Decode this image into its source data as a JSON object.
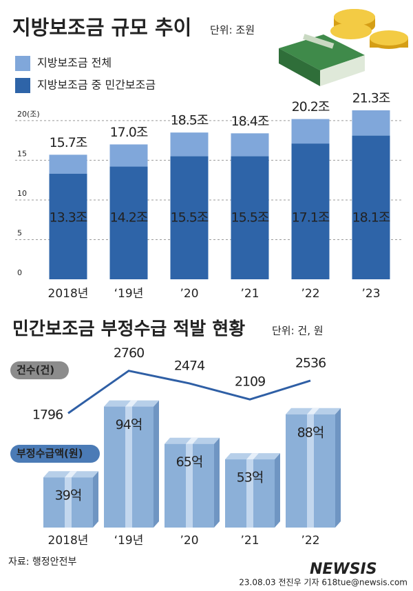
{
  "chart_data": [
    {
      "type": "bar",
      "bar_mode": "overlay",
      "title": "지방보조금 규모 추이",
      "unit": "단위: 조원",
      "categories": [
        "2018년",
        "‘19년",
        "’20",
        "’21",
        "’22",
        "’23"
      ],
      "series": [
        {
          "name": "지방보조금 전체",
          "color": "#80a7da",
          "values": [
            15.7,
            17.0,
            18.5,
            18.4,
            20.2,
            21.3
          ],
          "value_labels": [
            "15.7조",
            "17.0조",
            "18.5조",
            "18.4조",
            "20.2조",
            "21.3조"
          ]
        },
        {
          "name": "지방보조금 중 민간보조금",
          "color": "#2e64a8",
          "values": [
            13.3,
            14.2,
            15.5,
            15.5,
            17.1,
            18.1
          ],
          "value_labels": [
            "13.3조",
            "14.2조",
            "15.5조",
            "15.5조",
            "17.1조",
            "18.1조"
          ]
        }
      ],
      "ylim": [
        0,
        22.6
      ],
      "yticks": [
        0,
        5,
        10,
        15,
        {
          "value": 20,
          "label": "20(조)"
        }
      ],
      "grid": true
    },
    {
      "type": "combo",
      "title": "민간보조금 부정수급 적발 현황",
      "unit": "단위: 건, 원",
      "categories": [
        "2018년",
        "‘19년",
        "’20",
        "’21",
        "’22"
      ],
      "series": [
        {
          "name": "건수(건)",
          "type": "line",
          "axis": "y2",
          "color": "#2f5fa5",
          "values": [
            1796,
            2760,
            2474,
            2109,
            2536
          ]
        },
        {
          "name": "부정수급액(원)",
          "type": "bar",
          "color": "#8cb0d8",
          "values": [
            39,
            94,
            65,
            53,
            88
          ],
          "value_labels": [
            "39억",
            "94억",
            "65억",
            "53억",
            "88억"
          ]
        }
      ],
      "ylim": [
        0,
        142
      ],
      "y2lim": [
        -800,
        3350
      ]
    }
  ],
  "source": "자료: 행정안전부",
  "credit": "23.08.03 전진우 기자 618tue@newsis.com",
  "watermark": "NEWSIS"
}
